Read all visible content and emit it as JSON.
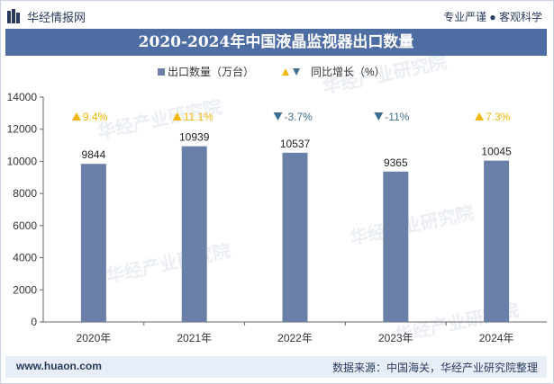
{
  "header": {
    "brand": "华经情报网",
    "tagline": "专业严谨 ● 客观科学"
  },
  "title": "2020-2024年中国液晶监视器出口数量",
  "footer": {
    "site": "www.huaon.com",
    "source": "数据来源：中国海关，华经产业研究院整理"
  },
  "watermark": "华经产业研究院",
  "colors": {
    "bar": "#6b80a8",
    "up": "#f2b705",
    "down": "#3f6f8f",
    "title_bg": "#4e6da3"
  },
  "chart_data": {
    "type": "bar",
    "categories": [
      "2020年",
      "2021年",
      "2022年",
      "2023年",
      "2024年"
    ],
    "series": [
      {
        "name": "出口数量（万台）",
        "values": [
          9844,
          10939,
          10537,
          9365,
          10045
        ]
      },
      {
        "name": "同比增长（%）",
        "values": [
          9.4,
          11.1,
          -3.7,
          -11,
          7.3
        ],
        "labels": [
          "9.4%",
          "11.1%",
          "-3.7%",
          "-11%",
          "7.3%"
        ]
      }
    ],
    "ylim": [
      0,
      14000
    ],
    "yticks": [
      0,
      2000,
      4000,
      6000,
      8000,
      10000,
      12000,
      14000
    ],
    "legend_position": "top-center",
    "grid": false
  }
}
